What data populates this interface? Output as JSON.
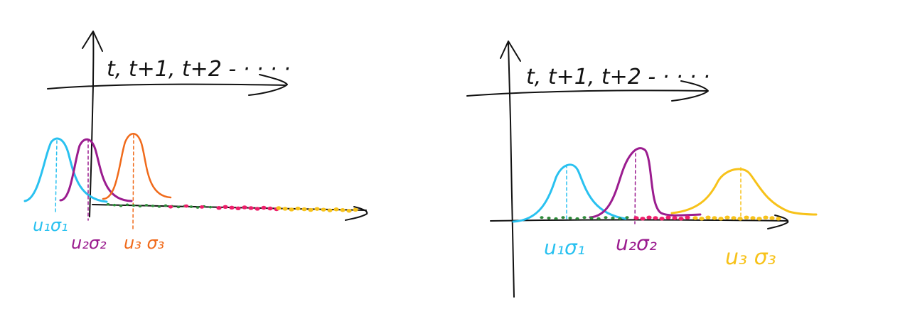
{
  "colors": {
    "ink": "#111111",
    "cyan": "#29c1f0",
    "purple": "#9b1c8f",
    "orange": "#f06a1a",
    "yellow": "#f7c21a",
    "pink": "#ee1e6b",
    "green": "#2e8b3a"
  },
  "left_panel": {
    "time_axis_label": "t, t+1, t+2 - · · · ·",
    "labels": [
      {
        "text": "u₁σ₁",
        "color": "cyan"
      },
      {
        "text": "u₂σ₂",
        "color": "purple"
      },
      {
        "text": "u₃ σ₃",
        "color": "orange"
      }
    ]
  },
  "right_panel": {
    "time_axis_label": "t, t+1, t+2 - · · · ·",
    "labels": [
      {
        "text": "u₁σ₁",
        "color": "cyan"
      },
      {
        "text": "u₂σ₂",
        "color": "purple"
      },
      {
        "text": "u₃ σ₃",
        "color": "yellow"
      }
    ]
  }
}
